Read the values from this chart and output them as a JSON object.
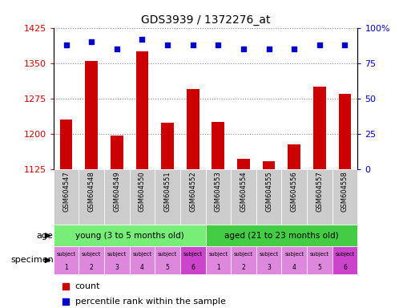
{
  "title": "GDS3939 / 1372276_at",
  "samples": [
    "GSM604547",
    "GSM604548",
    "GSM604549",
    "GSM604550",
    "GSM604551",
    "GSM604552",
    "GSM604553",
    "GSM604554",
    "GSM604555",
    "GSM604556",
    "GSM604557",
    "GSM604558"
  ],
  "bar_values": [
    1230,
    1355,
    1197,
    1375,
    1223,
    1295,
    1225,
    1148,
    1143,
    1178,
    1300,
    1285
  ],
  "dot_values": [
    88,
    90,
    85,
    92,
    88,
    88,
    88,
    85,
    85,
    85,
    88,
    88
  ],
  "ylim_left": [
    1125,
    1425
  ],
  "ylim_right": [
    0,
    100
  ],
  "yticks_left": [
    1125,
    1200,
    1275,
    1350,
    1425
  ],
  "yticks_right": [
    0,
    25,
    50,
    75,
    100
  ],
  "bar_color": "#cc0000",
  "dot_color": "#0000cc",
  "age_groups": [
    {
      "label": "young (3 to 5 months old)",
      "start": 0,
      "end": 6,
      "color": "#77ee77"
    },
    {
      "label": "aged (21 to 23 months old)",
      "start": 6,
      "end": 12,
      "color": "#44cc44"
    }
  ],
  "spec_colors_light": "#dd88dd",
  "spec_colors_dark": "#cc44cc",
  "xtick_bg": "#cccccc",
  "legend_count_color": "#cc0000",
  "legend_dot_color": "#0000cc",
  "background_color": "#ffffff"
}
